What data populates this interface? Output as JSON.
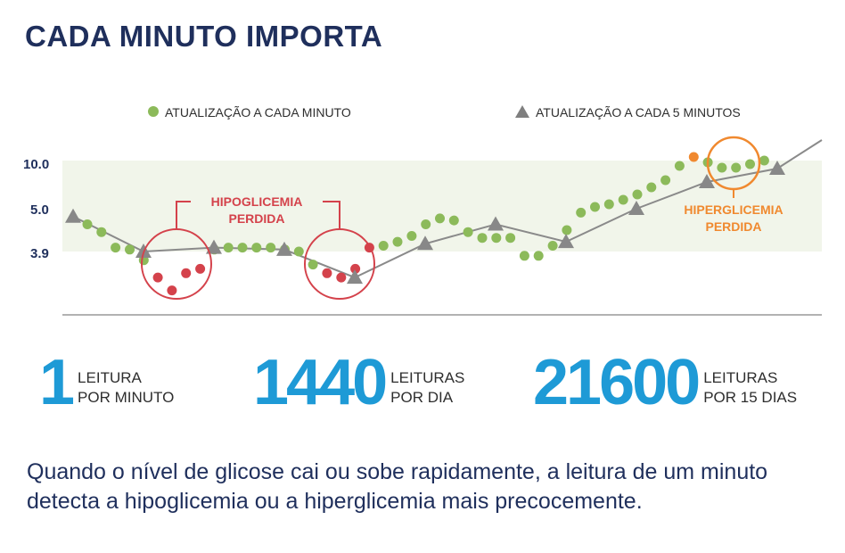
{
  "title": "CADA MINUTO IMPORTA",
  "chart_data": {
    "type": "line",
    "y_tick_labels": [
      "10.0",
      "5.0",
      "3.9"
    ],
    "legend": {
      "placement": "top",
      "dots": "ATUALIZAÇÃO A CADA MINUTO",
      "triangles": "ATUALIZAÇÃO A CADA 5 MINUTOS"
    },
    "annotations": {
      "hypo": [
        "HIPOGLICEMIA",
        "PERDIDA"
      ],
      "hyper": [
        "HIPERGLICEMIA",
        "PERDIDA"
      ]
    },
    "series": [
      {
        "marker": "dot",
        "color": "#8cba5a",
        "values": [
          4.6,
          4.4,
          4.0,
          3.95,
          3.8,
          3.6,
          3.45,
          3.65,
          3.7,
          3.95,
          4.0,
          4.0,
          4.0,
          4.0,
          3.95,
          3.9,
          3.75,
          3.65,
          3.6,
          3.7,
          4.0,
          4.05,
          4.15,
          4.3,
          4.6,
          4.75,
          4.7,
          4.4,
          4.25,
          4.25,
          4.25,
          3.85,
          3.85,
          4.05,
          4.45,
          4.9,
          5.2,
          5.5,
          6.0,
          6.6,
          7.4,
          8.2,
          9.8,
          10.8,
          10.2,
          9.6,
          9.6,
          10.0,
          10.4
        ]
      },
      {
        "marker": "triangle",
        "color": "#888888",
        "values": [
          4.8,
          3.9,
          4.0,
          3.95,
          3.6,
          4.1,
          4.6,
          4.15,
          5.0,
          8.0,
          9.5
        ]
      }
    ],
    "highlight_points": [
      {
        "index": 5,
        "color": "#d4424b"
      },
      {
        "index": 6,
        "color": "#d4424b"
      },
      {
        "index": 7,
        "color": "#d4424b"
      },
      {
        "index": 8,
        "color": "#d4424b"
      },
      {
        "index": 17,
        "color": "#d4424b"
      },
      {
        "index": 18,
        "color": "#d4424b"
      },
      {
        "index": 19,
        "color": "#d4424b"
      },
      {
        "index": 20,
        "color": "#d4424b"
      },
      {
        "index": 43,
        "color": "#f0892f"
      }
    ]
  },
  "stats": [
    {
      "number": "1",
      "line1": "LEITURA",
      "line2": "POR MINUTO"
    },
    {
      "number": "1440",
      "line1": "LEITURAS",
      "line2": "POR DIA"
    },
    {
      "number": "21600",
      "line1": "LEITURAS",
      "line2": "POR 15 DIAS"
    }
  ],
  "caption": "Quando o nível de glicose cai ou sobe rapidamente, a leitura de um minuto detecta a hipoglicemia ou a hiperglicemia mais precocemente."
}
